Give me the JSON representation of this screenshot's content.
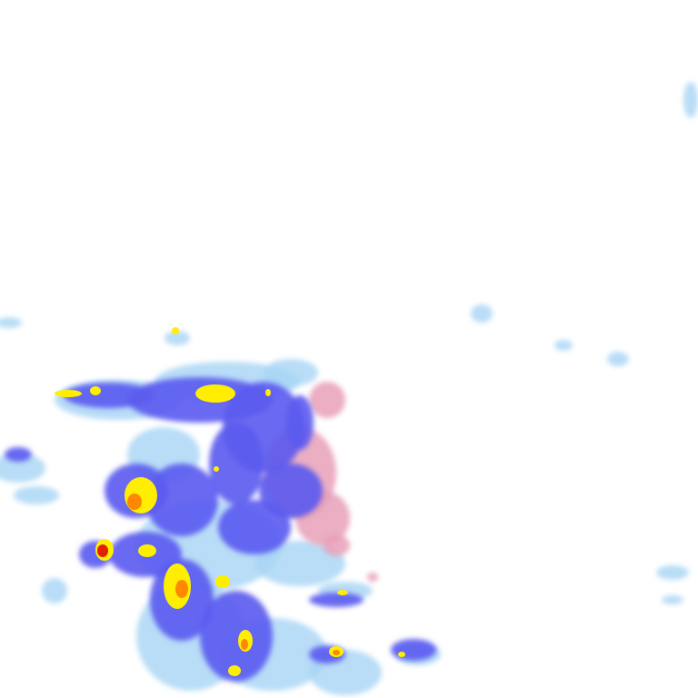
{
  "map": {
    "layer": "precipitation-radar",
    "palette": {
      "light": "#a8d4f5",
      "moderate": "#5a5af0",
      "heavy": "#3030e0",
      "intense": "#ffee00",
      "very_intense": "#ff8800",
      "extreme": "#e02000",
      "mixed": "#e8a0b8",
      "mixed_heavy": "#d04080"
    }
  }
}
